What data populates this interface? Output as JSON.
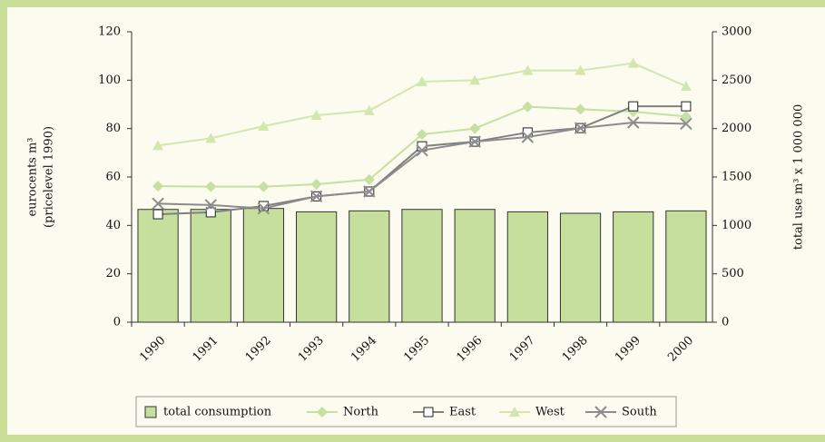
{
  "chart_data": {
    "type": "bar_line",
    "y_label_lines": [
      "eurocents m³",
      "(pricelevel 1990)"
    ],
    "y2_label": "total use m³ x 1 000 000",
    "categories": [
      "1990",
      "1991",
      "1992",
      "1993",
      "1994",
      "1995",
      "1996",
      "1997",
      "1998",
      "1999",
      "2000"
    ],
    "ylim": [
      0,
      120
    ],
    "yticks": [
      0,
      20,
      40,
      60,
      80,
      100,
      120
    ],
    "y2lim": [
      0,
      3000
    ],
    "y2ticks": [
      0,
      500,
      1000,
      1500,
      2000,
      2500,
      3000
    ],
    "series": [
      {
        "name": "total consumption",
        "type": "bar",
        "axis": "y2",
        "color": "#c6df9c",
        "values": [
          1165,
          1165,
          1175,
          1140,
          1150,
          1165,
          1165,
          1140,
          1125,
          1140,
          1150
        ]
      },
      {
        "name": "North",
        "type": "line",
        "marker": "diamond",
        "color": "#c5e0a0",
        "values": [
          56.2,
          56,
          56,
          57,
          58.9,
          77.6,
          80,
          89,
          88,
          87,
          85
        ]
      },
      {
        "name": "East",
        "type": "line",
        "marker": "square",
        "color": "#808080",
        "values": [
          44.6,
          45.4,
          48,
          52,
          54,
          72.7,
          74.6,
          78.4,
          80.2,
          89.2,
          89.2
        ]
      },
      {
        "name": "West",
        "type": "line",
        "marker": "triangle",
        "color": "#d3e6ae",
        "values": [
          73,
          76,
          81,
          85.5,
          87.4,
          99.4,
          100,
          104,
          104,
          107,
          97.5
        ]
      },
      {
        "name": "South",
        "type": "line",
        "marker": "x",
        "color": "#8c8c8c",
        "values": [
          49,
          48.4,
          47,
          52,
          54,
          71,
          74.6,
          76.5,
          80.2,
          82.5,
          82
        ]
      }
    ]
  }
}
